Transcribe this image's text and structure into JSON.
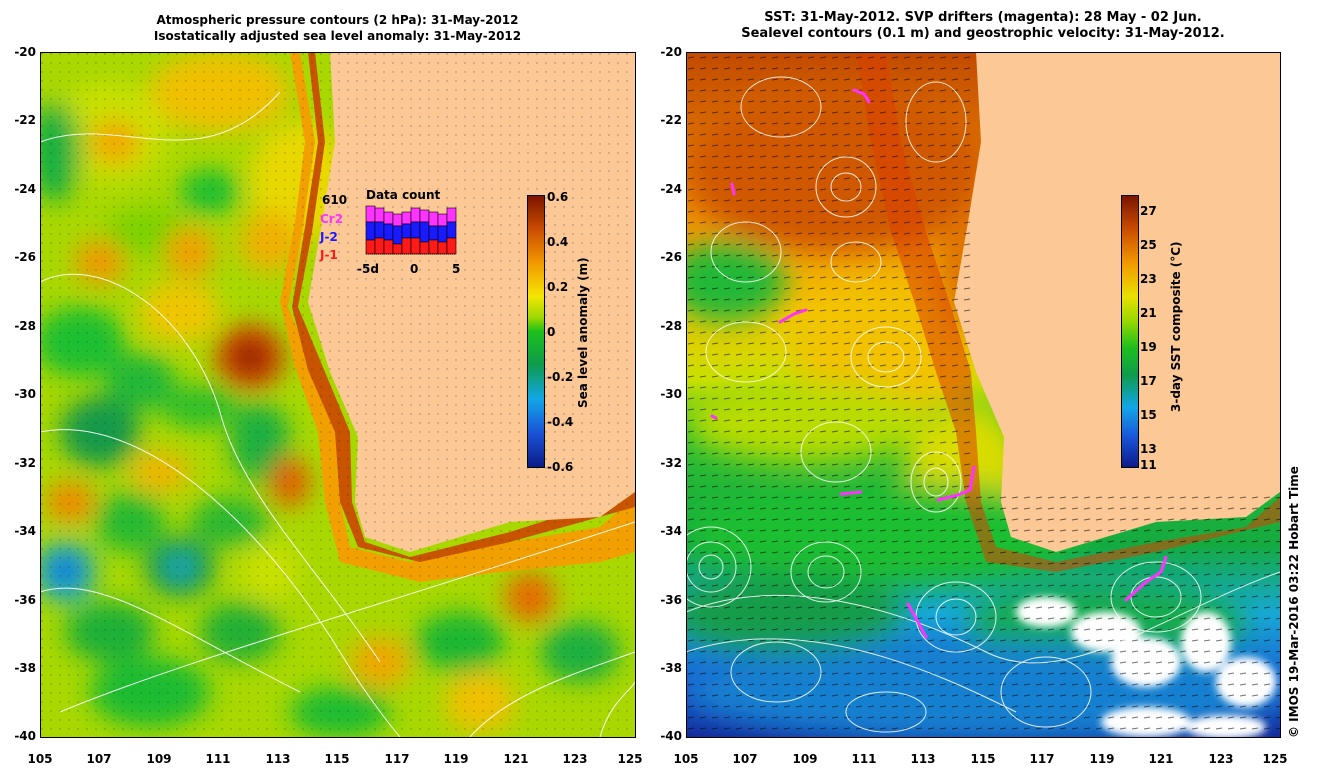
{
  "left_panel": {
    "title_line1": "Atmospheric pressure contours (2 hPa): 31-May-2012",
    "title_line2": "Isostatically adjusted sea level anomaly: 31-May-2012",
    "colorbar": {
      "title": "Sea level anomaly (m)",
      "ticks": [
        "0.6",
        "0.4",
        "0.2",
        "0",
        "-0.2",
        "-0.4",
        "-0.6"
      ]
    },
    "data_count": {
      "count": "610",
      "title": "Data count",
      "legend": [
        "Cr2",
        "J-2",
        "J-1"
      ],
      "legend_colors": [
        "#ff33ff",
        "#1a1aff",
        "#ff1a1a"
      ],
      "axis_labels": [
        "-5d",
        "0",
        "5"
      ]
    }
  },
  "right_panel": {
    "title_line1": "SST: 31-May-2012. SVP drifters (magenta): 28 May - 02 Jun.",
    "title_line2": "Sealevel contours (0.1 m) and geostrophic velocity: 31-May-2012.",
    "colorbar": {
      "title": "3-day SST composite (°C)",
      "ticks": [
        "27",
        "25",
        "23",
        "21",
        "19",
        "17",
        "15",
        "13",
        "11"
      ]
    }
  },
  "axes": {
    "lat_ticks": [
      "-20",
      "-22",
      "-24",
      "-26",
      "-28",
      "-30",
      "-32",
      "-34",
      "-36",
      "-38",
      "-40"
    ],
    "lon_ticks": [
      "105",
      "107",
      "109",
      "111",
      "113",
      "115",
      "117",
      "119",
      "121",
      "123",
      "125"
    ]
  },
  "credit": "© IMOS 19-Mar-2016 03:22 Hobart Time",
  "colors": {
    "land": "#fcc896",
    "drifter": "#ff33ff"
  }
}
